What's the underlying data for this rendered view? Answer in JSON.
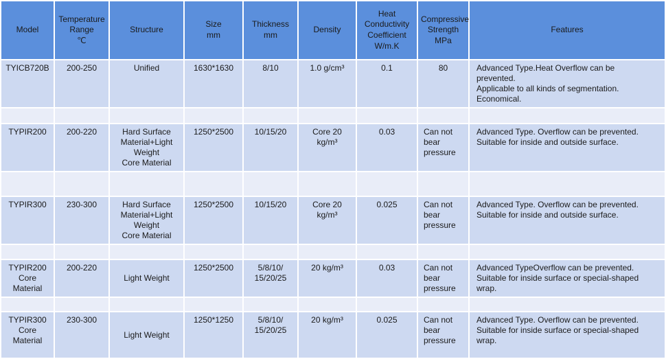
{
  "colors": {
    "header_bg": "#5b8fdc",
    "data_row_bg": "#cdd9f1",
    "spacer_row_bg": "#e9edf8",
    "gridline": "#ffffff",
    "text": "#1a1a1a"
  },
  "table": {
    "columns": [
      "Model",
      "Temperature\nRange\n℃",
      "Structure",
      "Size\nmm",
      "Thickness\nmm",
      "Density",
      "Heat\nConductivity\nCoefficient\nW/m.K",
      "Compressive\nStrength\nMPa",
      "Features"
    ],
    "column_keys": [
      "model",
      "temperature-range",
      "structure",
      "size",
      "thickness",
      "density",
      "heat-conductivity",
      "compressive-strength",
      "features"
    ],
    "rows": [
      {
        "type": "data",
        "cells": [
          "TYICB720B",
          "200-250",
          "Unified",
          "1630*1630",
          "8/10",
          "1.0 g/cm³",
          "0.1",
          "80",
          "Advanced Type.Heat Overflow can be prevented.\nApplicable to all kinds of segmentation.\nEconomical."
        ]
      },
      {
        "type": "spacer"
      },
      {
        "type": "data",
        "cells": [
          "TYPIR200",
          "200-220",
          "Hard Surface Material+Light Weight\nCore Material",
          "1250*2500",
          "10/15/20",
          "Core 20 kg/m³",
          "0.03",
          "Can not bear pressure",
          "Advanced Type. Overflow can be prevented.\nSuitable for inside and outside surface."
        ]
      },
      {
        "type": "spacer"
      },
      {
        "type": "data",
        "cells": [
          "TYPIR300",
          "230-300",
          "Hard Surface Material+Light Weight\nCore Material",
          "1250*2500",
          "10/15/20",
          "Core 20 kg/m³",
          "0.025",
          "Can not bear pressure",
          "Advanced Type. Overflow can be prevented.\nSuitable for inside and outside surface."
        ]
      },
      {
        "type": "spacer"
      },
      {
        "type": "data",
        "cells": [
          "TYPIR200 Core Material",
          "200-220",
          "Light Weight",
          "1250*2500",
          "5/8/10/\n15/20/25",
          "20 kg/m³",
          "0.03",
          "Can not bear pressure",
          "Advanced TypeOverflow can be prevented.\nSuitable for inside surface or special-shaped wrap."
        ]
      },
      {
        "type": "spacer"
      },
      {
        "type": "data",
        "cells": [
          "TYPIR300 Core Material",
          "230-300",
          "Light Weight",
          "1250*1250",
          "5/8/10/\n15/20/25",
          "20 kg/m³",
          "0.025",
          "Can not bear pressure",
          "Advanced Type. Overflow can be prevented.\nSuitable for inside surface or special-shaped wrap."
        ]
      }
    ]
  }
}
